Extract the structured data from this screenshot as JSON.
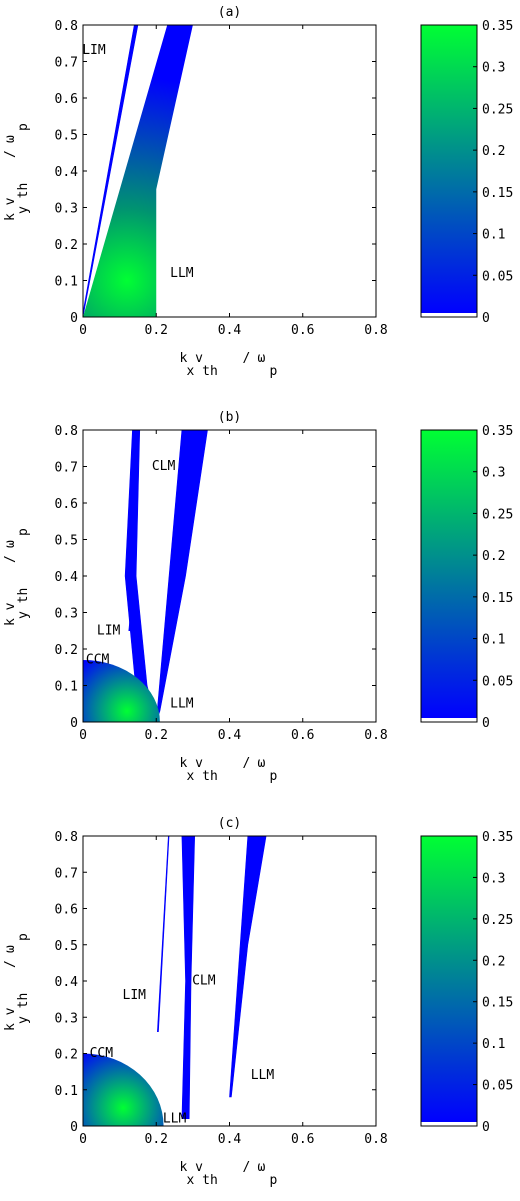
{
  "panels": [
    {
      "label": "(a)",
      "chart_data": {
        "type": "heatmap",
        "xlabel": "k vₓth / ωp",
        "ylabel": "k v_y th / ωp",
        "xlabel_parts": {
          "main": "k v",
          "sub": "x th",
          "slash": "/",
          "omega": "ω",
          "omega_sub": "p"
        },
        "ylabel_parts": {
          "main": "k v",
          "sub": "y th",
          "slash": "/",
          "omega": "ω",
          "omega_sub": "p"
        },
        "xlim": [
          0,
          0.8
        ],
        "ylim": [
          0,
          0.8
        ],
        "xticks": [
          "0",
          "0.2",
          "0.4",
          "0.6",
          "0.8"
        ],
        "yticks": [
          "0",
          "0.1",
          "0.2",
          "0.3",
          "0.4",
          "0.5",
          "0.6",
          "0.7",
          "0.8"
        ],
        "colorbar": {
          "min": 0,
          "max": 0.35,
          "ticks": [
            "0",
            "0.05",
            "0.1",
            "0.15",
            "0.2",
            "0.25",
            "0.3",
            "0.35"
          ],
          "colors": [
            "#0000ff",
            "#00ff33"
          ]
        },
        "regions": [
          {
            "name": "LIM",
            "outline": [
              [
                0,
                0
              ],
              [
                0.15,
                0.8
              ],
              [
                0.14,
                0.8
              ],
              [
                0.003,
                0.03
              ]
            ],
            "peak_value": 0.02
          },
          {
            "name": "LLM",
            "outline": [
              [
                0,
                0
              ],
              [
                0.23,
                0.8
              ],
              [
                0.3,
                0.8
              ],
              [
                0.2,
                0.35
              ],
              [
                0.2,
                0
              ]
            ],
            "peak_value": 0.35,
            "peak_at": [
              0.12,
              0.1
            ]
          }
        ],
        "annotations": [
          {
            "text": "LIM",
            "x": 0.03,
            "y": 0.72
          },
          {
            "text": "LLM",
            "x": 0.27,
            "y": 0.11
          }
        ]
      }
    },
    {
      "label": "(b)",
      "chart_data": {
        "type": "heatmap",
        "xlabel": "k vₓth / ωp",
        "ylabel": "k v_y th / ωp",
        "xlabel_parts": {
          "main": "k v",
          "sub": "x th",
          "slash": "/",
          "omega": "ω",
          "omega_sub": "p"
        },
        "ylabel_parts": {
          "main": "k v",
          "sub": "y th",
          "slash": "/",
          "omega": "ω",
          "omega_sub": "p"
        },
        "xlim": [
          0,
          0.8
        ],
        "ylim": [
          0,
          0.8
        ],
        "xticks": [
          "0",
          "0.2",
          "0.4",
          "0.6",
          "0.8"
        ],
        "yticks": [
          "0",
          "0.1",
          "0.2",
          "0.3",
          "0.4",
          "0.5",
          "0.6",
          "0.7",
          "0.8"
        ],
        "colorbar": {
          "min": 0,
          "max": 0.35,
          "ticks": [
            "0",
            "0.05",
            "0.1",
            "0.15",
            "0.2",
            "0.25",
            "0.3",
            "0.35"
          ],
          "colors": [
            "#0000ff",
            "#00ff33"
          ]
        },
        "regions": [
          {
            "name": "CLM",
            "outline": [
              [
                0.15,
                0.03
              ],
              [
                0.115,
                0.4
              ],
              [
                0.135,
                0.8
              ],
              [
                0.155,
                0.8
              ],
              [
                0.145,
                0.4
              ],
              [
                0.175,
                0.1
              ],
              [
                0.2,
                0
              ]
            ],
            "peak_value": 0.02
          },
          {
            "name": "LLM",
            "outline": [
              [
                0.2,
                0
              ],
              [
                0.27,
                0.8
              ],
              [
                0.34,
                0.8
              ],
              [
                0.28,
                0.4
              ],
              [
                0.21,
                0.03
              ]
            ],
            "peak_value": 0.02
          },
          {
            "name": "LIM",
            "outline": [
              [
                0.125,
                0.25
              ],
              [
                0.135,
                0.36
              ],
              [
                0.138,
                0.36
              ],
              [
                0.13,
                0.25
              ]
            ],
            "peak_value": 0.01
          },
          {
            "name": "CCM",
            "outline": "quarter-disc",
            "radius": [
              0.21,
              0.17
            ],
            "peak_value": 0.35,
            "peak_at": [
              0.12,
              0.03
            ]
          }
        ],
        "annotations": [
          {
            "text": "CLM",
            "x": 0.22,
            "y": 0.69
          },
          {
            "text": "LIM",
            "x": 0.07,
            "y": 0.24
          },
          {
            "text": "CCM",
            "x": 0.04,
            "y": 0.16
          },
          {
            "text": "LLM",
            "x": 0.27,
            "y": 0.04
          }
        ]
      }
    },
    {
      "label": "(c)",
      "chart_data": {
        "type": "heatmap",
        "xlabel": "k vₓth / ωp",
        "ylabel": "k v_y th / ωp",
        "xlabel_parts": {
          "main": "k v",
          "sub": "x th",
          "slash": "/",
          "omega": "ω",
          "omega_sub": "p"
        },
        "ylabel_parts": {
          "main": "k v",
          "sub": "y th",
          "slash": "/",
          "omega": "ω",
          "omega_sub": "p"
        },
        "xlim": [
          0,
          0.8
        ],
        "ylim": [
          0,
          0.8
        ],
        "xticks": [
          "0",
          "0.2",
          "0.4",
          "0.6",
          "0.8"
        ],
        "yticks": [
          "0",
          "0.1",
          "0.2",
          "0.3",
          "0.4",
          "0.5",
          "0.6",
          "0.7",
          "0.8"
        ],
        "colorbar": {
          "min": 0,
          "max": 0.35,
          "ticks": [
            "0",
            "0.05",
            "0.1",
            "0.15",
            "0.2",
            "0.25",
            "0.3",
            "0.35"
          ],
          "colors": [
            "#0000ff",
            "#00ff33"
          ]
        },
        "regions": [
          {
            "name": "CLM",
            "outline": [
              [
                0.27,
                0.02
              ],
              [
                0.28,
                0.4
              ],
              [
                0.27,
                0.8
              ],
              [
                0.305,
                0.8
              ],
              [
                0.295,
                0.4
              ],
              [
                0.29,
                0.02
              ]
            ],
            "peak_value": 0.02
          },
          {
            "name": "LLM",
            "outline": [
              [
                0.4,
                0.08
              ],
              [
                0.45,
                0.8
              ],
              [
                0.5,
                0.8
              ],
              [
                0.45,
                0.5
              ],
              [
                0.405,
                0.08
              ]
            ],
            "peak_value": 0.02
          },
          {
            "name": "LIM",
            "outline": [
              [
                0.233,
                0.8
              ],
              [
                0.235,
                0.8
              ],
              [
                0.206,
                0.26
              ],
              [
                0.203,
                0.26
              ]
            ],
            "peak_value": 0.01
          },
          {
            "name": "CCM",
            "outline": "quarter-disc",
            "radius": [
              0.22,
              0.2
            ],
            "peak_value": 0.35,
            "peak_at": [
              0.11,
              0.05
            ]
          }
        ],
        "annotations": [
          {
            "text": "CLM",
            "x": 0.33,
            "y": 0.39
          },
          {
            "text": "LIM",
            "x": 0.14,
            "y": 0.35
          },
          {
            "text": "CCM",
            "x": 0.05,
            "y": 0.19
          },
          {
            "text": "LLM",
            "x": 0.49,
            "y": 0.13
          },
          {
            "text": "LLM",
            "x": 0.25,
            "y": 0.01
          }
        ]
      }
    }
  ]
}
